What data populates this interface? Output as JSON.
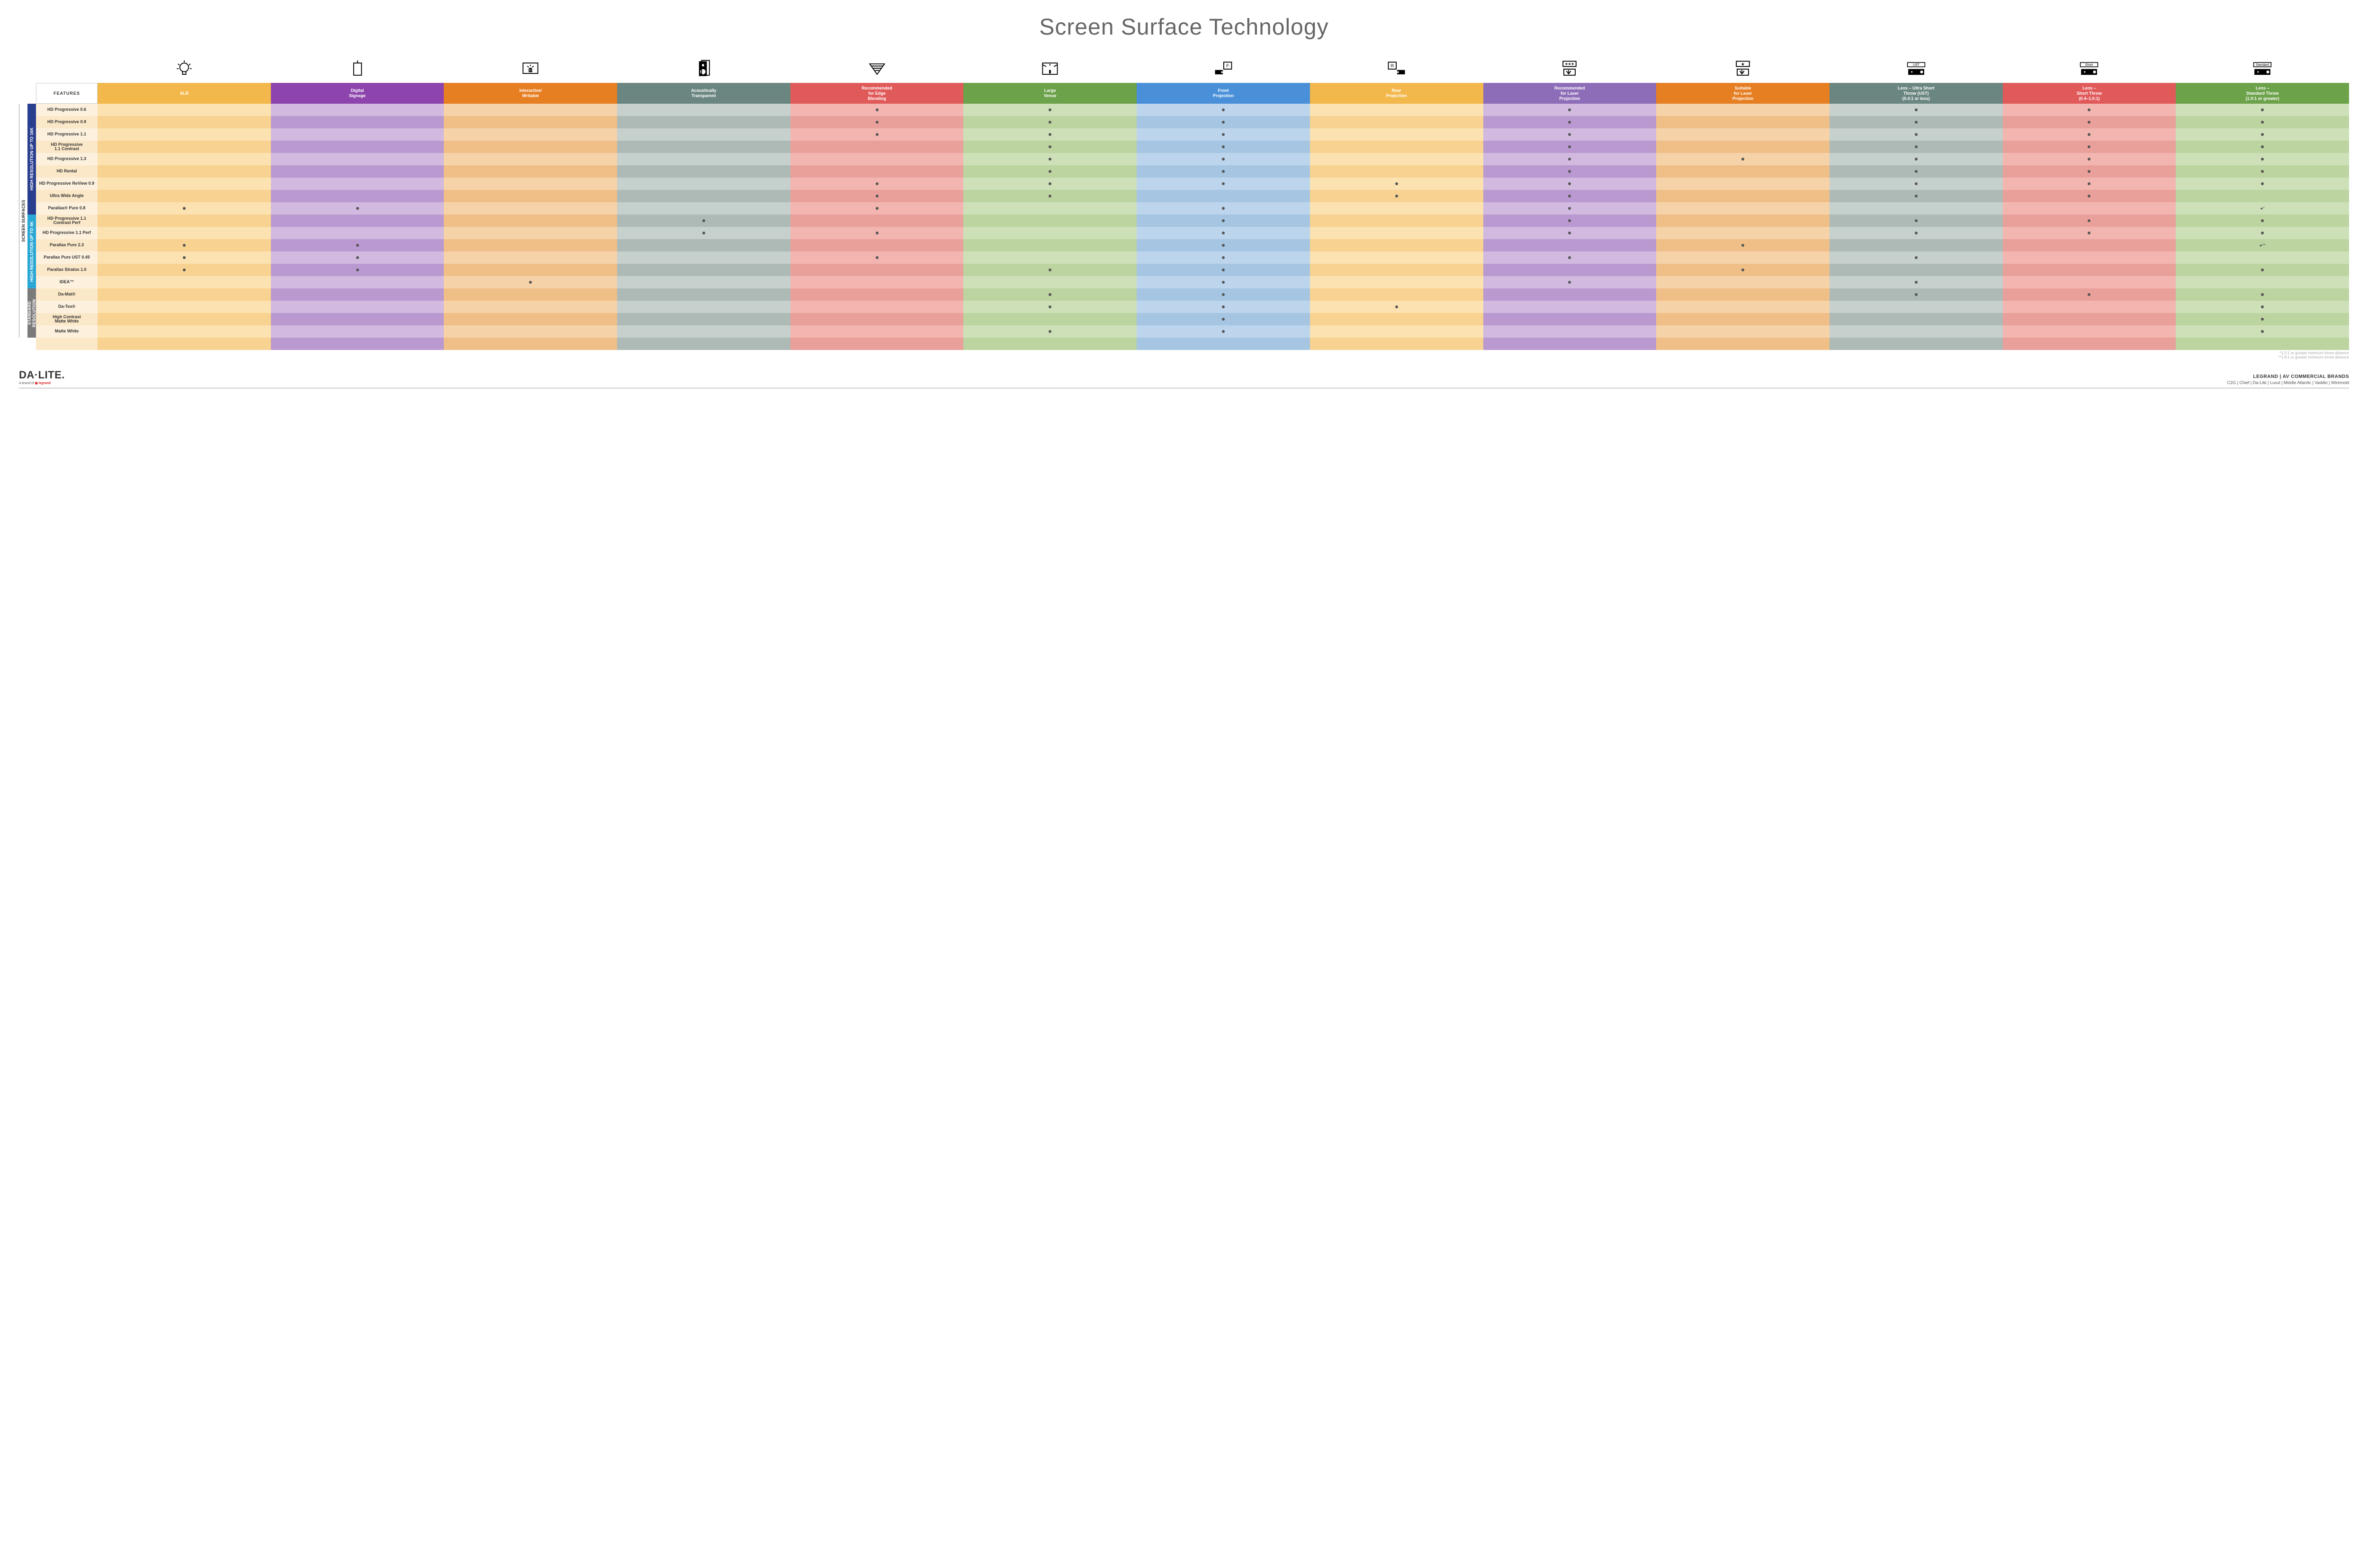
{
  "title": "Screen Surface Technology",
  "featuresHeader": "FEATURES",
  "columns": [
    {
      "key": "alr",
      "label": "ALR",
      "icon": "bulb",
      "color": "#f2b84b"
    },
    {
      "key": "signage",
      "label": "Digital\nSignage",
      "icon": "hang",
      "color": "#8e44ad"
    },
    {
      "key": "writable",
      "label": "Interactive/\nWritable",
      "icon": "touch",
      "color": "#e67e22"
    },
    {
      "key": "acoustic",
      "label": "Acoustically\nTransparent",
      "icon": "speaker",
      "color": "#6b8681"
    },
    {
      "key": "edge",
      "label": "Recommended\nfor Edge\nBlending",
      "icon": "wedge",
      "color": "#e15a5a"
    },
    {
      "key": "large",
      "label": "Large\nVenue",
      "icon": "stage",
      "color": "#6ca24a"
    },
    {
      "key": "front",
      "label": "Front\nProjection",
      "icon": "front",
      "color": "#4a90d9"
    },
    {
      "key": "rear",
      "label": "Rear\nProjection",
      "icon": "rear",
      "color": "#f2b84b"
    },
    {
      "key": "laserRec",
      "label": "Recommended\nfor Laser\nProjection",
      "icon": "laserR",
      "color": "#8e6db8"
    },
    {
      "key": "laserSuit",
      "label": "Suitable\nfor Laser\nProjection",
      "icon": "laserS",
      "color": "#e67e22"
    },
    {
      "key": "ust",
      "label": "Lens – Ultra Short\nThrow (UST)\n(0.4:1 or less)",
      "icon": "ust",
      "color": "#6b8681"
    },
    {
      "key": "short",
      "label": "Lens –\nShort Throw\n(0.4–1.0:1)",
      "icon": "short",
      "color": "#e15a5a"
    },
    {
      "key": "std",
      "label": "Lens –\nStandard Throw\n(1.0:1 or greater)",
      "icon": "std",
      "color": "#6ca24a"
    }
  ],
  "tints": {
    "alr": [
      "#fce2b0",
      "#f8d290"
    ],
    "signage": [
      "#d1b9e0",
      "#b999d0"
    ],
    "writable": [
      "#f6d2a8",
      "#f0bf88"
    ],
    "acoustic": [
      "#c6d0cd",
      "#aebab6"
    ],
    "edge": [
      "#f2b5b0",
      "#eaa09a"
    ],
    "large": [
      "#cde0b8",
      "#bbd4a0"
    ],
    "front": [
      "#bdd5ec",
      "#a5c5e2"
    ],
    "rear": [
      "#fce2b0",
      "#f8d290"
    ],
    "laserRec": [
      "#d1b9e0",
      "#b999d0"
    ],
    "laserSuit": [
      "#f6d2a8",
      "#f0bf88"
    ],
    "ust": [
      "#c6d0cd",
      "#aebab6"
    ],
    "short": [
      "#f2b5b0",
      "#eaa09a"
    ],
    "std": [
      "#cde0b8",
      "#bbd4a0"
    ]
  },
  "labelTints": [
    "#fdf1de",
    "#fbe8c8"
  ],
  "groups": [
    {
      "key": "g16k",
      "label": "HIGH RESOLUTION UP TO 16K",
      "color": "#2a3e8f",
      "rows": 9
    },
    {
      "key": "g4k",
      "label": "HIGH RESOLUTION UP TO 4K",
      "color": "#2aa7d4",
      "rows": 6
    },
    {
      "key": "gstd",
      "label": "STANDARD\nRESOLUTION",
      "color": "#7a7a7a",
      "rows": 4
    }
  ],
  "outerLabel": "SCREEN SURFACES",
  "rows": [
    {
      "label": "HD Progressive 0.6",
      "dots": [
        "edge",
        "large",
        "front",
        "laserRec",
        "ust",
        "short",
        "std"
      ]
    },
    {
      "label": "HD Progressive 0.9",
      "dots": [
        "edge",
        "large",
        "front",
        "laserRec",
        "ust",
        "short",
        "std"
      ]
    },
    {
      "label": "HD Progressive 1.1",
      "dots": [
        "edge",
        "large",
        "front",
        "laserRec",
        "ust",
        "short",
        "std"
      ]
    },
    {
      "label": "HD Progressive\n1.1 Contrast",
      "dots": [
        "large",
        "front",
        "laserRec",
        "ust",
        "short",
        "std"
      ]
    },
    {
      "label": "HD Progressive 1.3",
      "dots": [
        "large",
        "front",
        "laserRec",
        "laserSuit",
        "ust",
        "short",
        "std"
      ]
    },
    {
      "label": "HD Rental",
      "dots": [
        "large",
        "front",
        "laserRec",
        "ust",
        "short",
        "std"
      ]
    },
    {
      "label": "HD Progressive ReView 0.9",
      "dots": [
        "edge",
        "large",
        "front",
        "rear",
        "laserRec",
        "ust",
        "short",
        "std"
      ]
    },
    {
      "label": "Ultra Wide Angle",
      "dots": [
        "edge",
        "large",
        "rear",
        "laserRec",
        "ust",
        "short"
      ]
    },
    {
      "label": "Parallax® Pure 0.8",
      "dots": [
        "alr",
        "signage",
        "edge",
        "front",
        "laserRec"
      ],
      "note": "std",
      "noteText": "●*"
    },
    {
      "label": "HD Progressive 1.1\nContrast Perf",
      "dots": [
        "acoustic",
        "front",
        "laserRec",
        "ust",
        "short",
        "std"
      ]
    },
    {
      "label": "HD Progressive 1.1 Perf",
      "dots": [
        "acoustic",
        "edge",
        "front",
        "laserRec",
        "ust",
        "short",
        "std"
      ]
    },
    {
      "label": "Parallax Pure 2.3",
      "dots": [
        "alr",
        "signage",
        "front",
        "laserSuit"
      ],
      "note": "std",
      "noteText": "●**"
    },
    {
      "label": "Parallax Pure UST 0.45",
      "dots": [
        "alr",
        "signage",
        "edge",
        "front",
        "laserRec",
        "ust"
      ]
    },
    {
      "label": "Parallax Stratos 1.0",
      "dots": [
        "alr",
        "signage",
        "large",
        "front",
        "laserSuit",
        "std"
      ]
    },
    {
      "label": "IDEA™",
      "dots": [
        "writable",
        "front",
        "laserRec",
        "ust"
      ]
    },
    {
      "label": "Da-Mat®",
      "dots": [
        "large",
        "front",
        "ust",
        "short",
        "std"
      ]
    },
    {
      "label": "Da-Tex®",
      "dots": [
        "large",
        "front",
        "rear",
        "std"
      ]
    },
    {
      "label": "High Contrast\nMatte White",
      "dots": [
        "front",
        "std"
      ]
    },
    {
      "label": "Matte White",
      "dots": [
        "large",
        "front",
        "std"
      ]
    }
  ],
  "footnotes": [
    "*1.5:1 or greater minimum throw distance",
    "**1.8:1 or greater minimum throw distance"
  ],
  "footer": {
    "logo": "DA·LITE.",
    "sub_prefix": "A brand of ",
    "sub_brand": "legrand",
    "brands_top": "LEGRAND | AV COMMERCIAL BRANDS",
    "brands_list": [
      "C2G",
      "Chief",
      "Da-Lite",
      "Luxul",
      "Middle Atlantic",
      "Vaddio",
      "Wiremold"
    ]
  }
}
